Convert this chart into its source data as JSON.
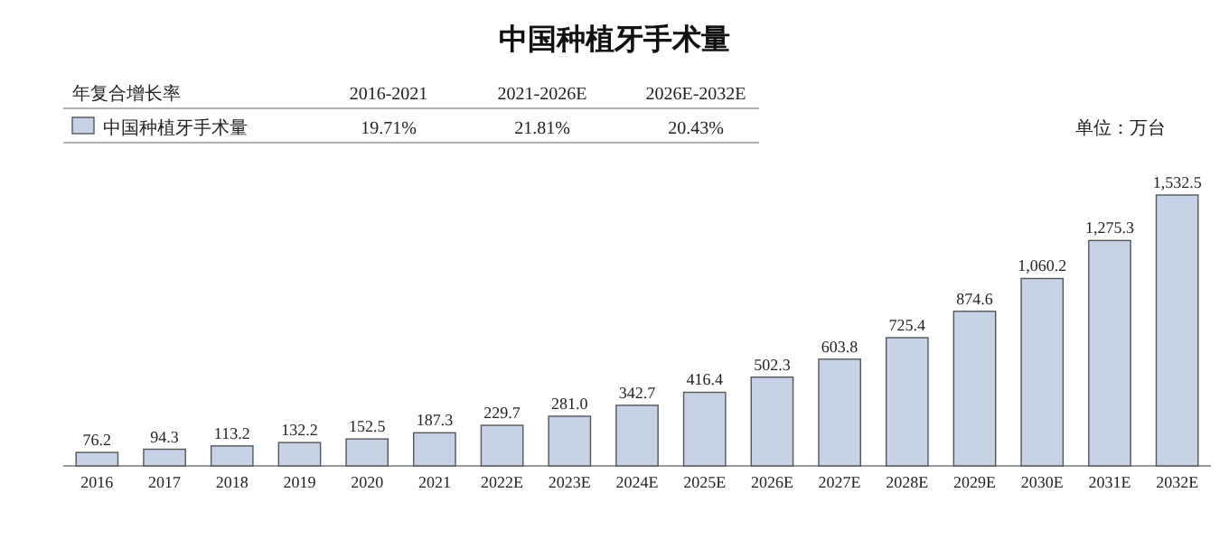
{
  "chart_data": {
    "type": "bar",
    "title": "中国种植牙手术量",
    "categories": [
      "2016",
      "2017",
      "2018",
      "2019",
      "2020",
      "2021",
      "2022E",
      "2023E",
      "2024E",
      "2025E",
      "2026E",
      "2027E",
      "2028E",
      "2029E",
      "2030E",
      "2031E",
      "2032E"
    ],
    "series": [
      {
        "name": "中国种植牙手术量",
        "color": "#c8d2e6",
        "values": [
          76.2,
          94.3,
          113.2,
          132.2,
          152.5,
          187.3,
          229.7,
          281.0,
          342.7,
          416.4,
          502.3,
          603.8,
          725.4,
          874.6,
          1060.2,
          1275.3,
          1532.5
        ],
        "value_labels": [
          "76.2",
          "94.3",
          "113.2",
          "132.2",
          "152.5",
          "187.3",
          "229.7",
          "281.0",
          "342.7",
          "416.4",
          "502.3",
          "603.8",
          "725.4",
          "874.6",
          "1,060.2",
          "1,275.3",
          "1,532.5"
        ]
      }
    ],
    "legend": "top left",
    "annotations": [
      "年复合增长率",
      "2016-2021",
      "2021-2026E",
      "2026E-2032E",
      "19.71%",
      "21.81%",
      "20.43%",
      "单位：万台"
    ]
  }
}
